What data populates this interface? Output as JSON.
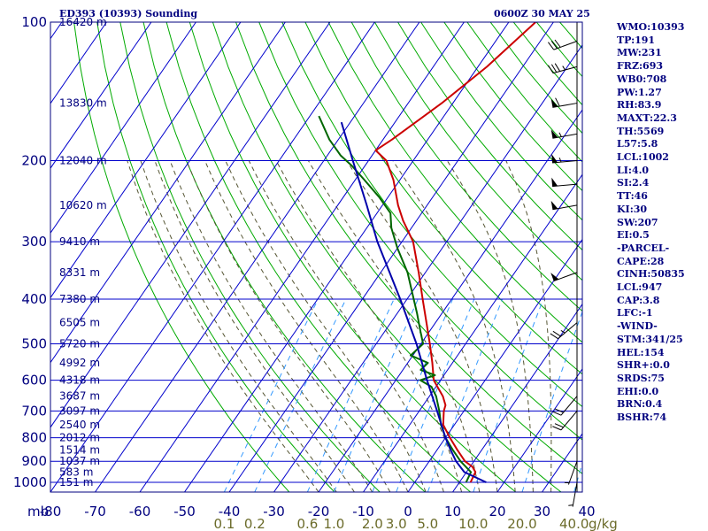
{
  "header": {
    "station_title": "ED393 (10393) Sounding",
    "time_title": "0600Z 30 MAY 25"
  },
  "indices": [
    "WMO:10393",
    "TP:191",
    "MW:231",
    "FRZ:693",
    "WB0:708",
    "PW:1.27",
    "RH:83.9",
    "MAXT:22.3",
    "TH:5569",
    "L57:5.8",
    "LCL:1002",
    "LI:4.0",
    "SI:2.4",
    "TT:46",
    "KI:30",
    "SW:207",
    "EI:0.5",
    "-PARCEL-",
    "CAPE:28",
    "CINH:50835",
    "LCL:947",
    "CAP:3.8",
    "LFC:-1",
    "-WIND-",
    "STM:341/25",
    "HEL:154",
    "SHR+:0.0",
    "SRDS:75",
    "EHI:0.0",
    "BRN:0.4",
    "BSHR:74"
  ],
  "colors": {
    "frame": "#00007f",
    "isobar": "#0000cc",
    "isotherm": "#0000cc",
    "dry_adiabat": "#00aa00",
    "moist_adiabat": "#555533",
    "mixing_ratio": "#3399ff",
    "temperature": "#cc0000",
    "dewpoint": "#006600",
    "parcel": "#0000aa",
    "mixing_label": "#6b6b2a"
  },
  "chart_data": {
    "type": "skew-t log-p sounding",
    "pressure_label_unit": "mb",
    "mixing_ratio_unit": "g/kg",
    "pressure_levels_mb": [
      100,
      200,
      300,
      400,
      500,
      600,
      700,
      800,
      900,
      1000
    ],
    "pressure_labels": [
      "100",
      "200",
      "300",
      "400",
      "500",
      "600",
      "700",
      "800",
      "900",
      "1000"
    ],
    "temperature_ticks_c": [
      -80,
      -70,
      -60,
      -50,
      -40,
      -30,
      -20,
      -10,
      0,
      10,
      20,
      30,
      40
    ],
    "temperature_labels": [
      "-80",
      "-70",
      "-60",
      "-50",
      "-40",
      "-30",
      "-20",
      "-10",
      "0",
      "10",
      "20",
      "30",
      "40"
    ],
    "mixing_ratio_labels": [
      "0.1",
      "0.2",
      "0.6",
      "1.0",
      "2.0",
      "3.0",
      "5.0",
      "10.0",
      "20.0",
      "40.0"
    ],
    "height_labels": [
      {
        "text": "16420 m",
        "p": 100
      },
      {
        "text": "13830 m",
        "p": 150
      },
      {
        "text": "12040 m",
        "p": 200
      },
      {
        "text": "10620 m",
        "p": 250
      },
      {
        "text": "9410 m",
        "p": 300
      },
      {
        "text": "8331 m",
        "p": 350
      },
      {
        "text": "7380 m",
        "p": 400
      },
      {
        "text": "6505 m",
        "p": 450
      },
      {
        "text": "5720 m",
        "p": 500
      },
      {
        "text": "4992 m",
        "p": 550
      },
      {
        "text": "4318 m",
        "p": 600
      },
      {
        "text": "3687 m",
        "p": 650
      },
      {
        "text": "3097 m",
        "p": 700
      },
      {
        "text": "2540 m",
        "p": 750
      },
      {
        "text": "2012 m",
        "p": 800
      },
      {
        "text": "1514 m",
        "p": 850
      },
      {
        "text": "1037 m",
        "p": 900
      },
      {
        "text": "583 m",
        "p": 950
      },
      {
        "text": "151 m",
        "p": 1000
      }
    ],
    "series": [
      {
        "key": "temperature",
        "points": [
          {
            "p": 1000,
            "t": 12.5
          },
          {
            "p": 950,
            "t": 12.0
          },
          {
            "p": 925,
            "t": 10.5
          },
          {
            "p": 900,
            "t": 8.0
          },
          {
            "p": 850,
            "t": 4.5
          },
          {
            "p": 800,
            "t": 1.0
          },
          {
            "p": 750,
            "t": -2.5
          },
          {
            "p": 700,
            "t": -4.5
          },
          {
            "p": 680,
            "t": -5.0
          },
          {
            "p": 650,
            "t": -7.0
          },
          {
            "p": 600,
            "t": -11.5
          },
          {
            "p": 550,
            "t": -14.5
          },
          {
            "p": 500,
            "t": -18.0
          },
          {
            "p": 450,
            "t": -22.0
          },
          {
            "p": 400,
            "t": -26.5
          },
          {
            "p": 350,
            "t": -31.5
          },
          {
            "p": 300,
            "t": -37.5
          },
          {
            "p": 270,
            "t": -43.0
          },
          {
            "p": 250,
            "t": -46.5
          },
          {
            "p": 220,
            "t": -51.5
          },
          {
            "p": 200,
            "t": -56.0
          },
          {
            "p": 190,
            "t": -60.0
          },
          {
            "p": 180,
            "t": -58.0
          },
          {
            "p": 150,
            "t": -52.5
          },
          {
            "p": 125,
            "t": -48.0
          },
          {
            "p": 100,
            "t": -44.0
          }
        ]
      },
      {
        "key": "dewpoint",
        "points": [
          {
            "p": 1000,
            "t": 11.5
          },
          {
            "p": 950,
            "t": 11.0
          },
          {
            "p": 900,
            "t": 7.0
          },
          {
            "p": 850,
            "t": 3.5
          },
          {
            "p": 800,
            "t": 0.0
          },
          {
            "p": 750,
            "t": -3.0
          },
          {
            "p": 700,
            "t": -5.5
          },
          {
            "p": 650,
            "t": -8.5
          },
          {
            "p": 620,
            "t": -11.0
          },
          {
            "p": 600,
            "t": -14.5
          },
          {
            "p": 585,
            "t": -12.0
          },
          {
            "p": 570,
            "t": -16.0
          },
          {
            "p": 550,
            "t": -15.5
          },
          {
            "p": 530,
            "t": -20.5
          },
          {
            "p": 500,
            "t": -19.5
          },
          {
            "p": 470,
            "t": -22.0
          },
          {
            "p": 430,
            "t": -25.5
          },
          {
            "p": 400,
            "t": -28.5
          },
          {
            "p": 350,
            "t": -34.0
          },
          {
            "p": 310,
            "t": -40.0
          },
          {
            "p": 280,
            "t": -44.5
          },
          {
            "p": 260,
            "t": -47.0
          },
          {
            "p": 240,
            "t": -52.0
          },
          {
            "p": 220,
            "t": -58.0
          },
          {
            "p": 205,
            "t": -63.0
          },
          {
            "p": 195,
            "t": -67.0
          },
          {
            "p": 180,
            "t": -72.0
          },
          {
            "p": 160,
            "t": -78.0
          }
        ]
      },
      {
        "key": "parcel",
        "points": [
          {
            "p": 1000,
            "t": 16.0
          },
          {
            "p": 950,
            "t": 9.5
          },
          {
            "p": 900,
            "t": 6.0
          },
          {
            "p": 850,
            "t": 3.0
          },
          {
            "p": 800,
            "t": 0.0
          },
          {
            "p": 700,
            "t": -6.0
          },
          {
            "p": 600,
            "t": -13.0
          },
          {
            "p": 500,
            "t": -21.0
          },
          {
            "p": 400,
            "t": -31.5
          },
          {
            "p": 300,
            "t": -45.5
          },
          {
            "p": 250,
            "t": -53.5
          },
          {
            "p": 200,
            "t": -63.5
          },
          {
            "p": 165,
            "t": -72.0
          }
        ]
      }
    ],
    "wind_barbs": [
      {
        "p": 110,
        "dir": 250,
        "spd": 30
      },
      {
        "p": 125,
        "dir": 255,
        "spd": 35
      },
      {
        "p": 150,
        "dir": 260,
        "spd": 60
      },
      {
        "p": 175,
        "dir": 260,
        "spd": 55
      },
      {
        "p": 200,
        "dir": 265,
        "spd": 55
      },
      {
        "p": 225,
        "dir": 265,
        "spd": 50
      },
      {
        "p": 250,
        "dir": 260,
        "spd": 50
      },
      {
        "p": 350,
        "dir": 250,
        "spd": 50
      },
      {
        "p": 450,
        "dir": 230,
        "spd": 25
      },
      {
        "p": 650,
        "dir": 220,
        "spd": 20
      },
      {
        "p": 700,
        "dir": 220,
        "spd": 20
      },
      {
        "p": 900,
        "dir": 200,
        "spd": 5
      },
      {
        "p": 1000,
        "dir": 190,
        "spd": 5
      }
    ]
  }
}
